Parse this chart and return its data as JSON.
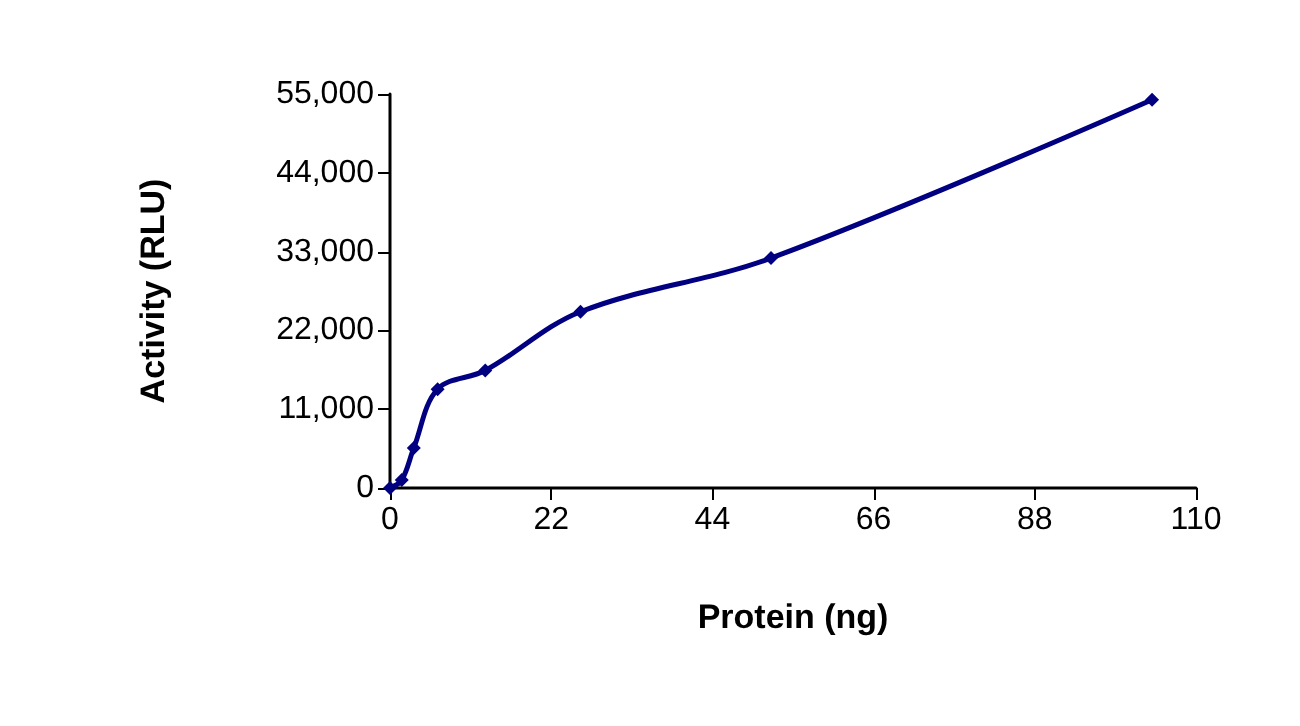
{
  "chart_data": {
    "type": "line",
    "xlabel": "Protein (ng)",
    "ylabel": "Activity (RLU)",
    "x": [
      0,
      1.6,
      3.25,
      6.5,
      13,
      26,
      52,
      104
    ],
    "series": [
      {
        "color": "#000080",
        "values": [
          0,
          1100,
          5600,
          13800,
          16400,
          24600,
          32100,
          54200
        ]
      }
    ],
    "xlim": [
      0,
      110
    ],
    "xticks": [
      0,
      22,
      44,
      66,
      88,
      110
    ],
    "ylim": [
      0,
      55000
    ],
    "yticks": [
      {
        "value": 0,
        "label": "0"
      },
      {
        "value": 11000,
        "label": "11,000"
      },
      {
        "value": 22000,
        "label": "22,000"
      },
      {
        "value": 33000,
        "label": "33,000"
      },
      {
        "value": 44000,
        "label": "44,000"
      },
      {
        "value": 55000,
        "label": "55,000"
      }
    ],
    "grid": false,
    "marker": "diamond",
    "line_style": "solid"
  }
}
